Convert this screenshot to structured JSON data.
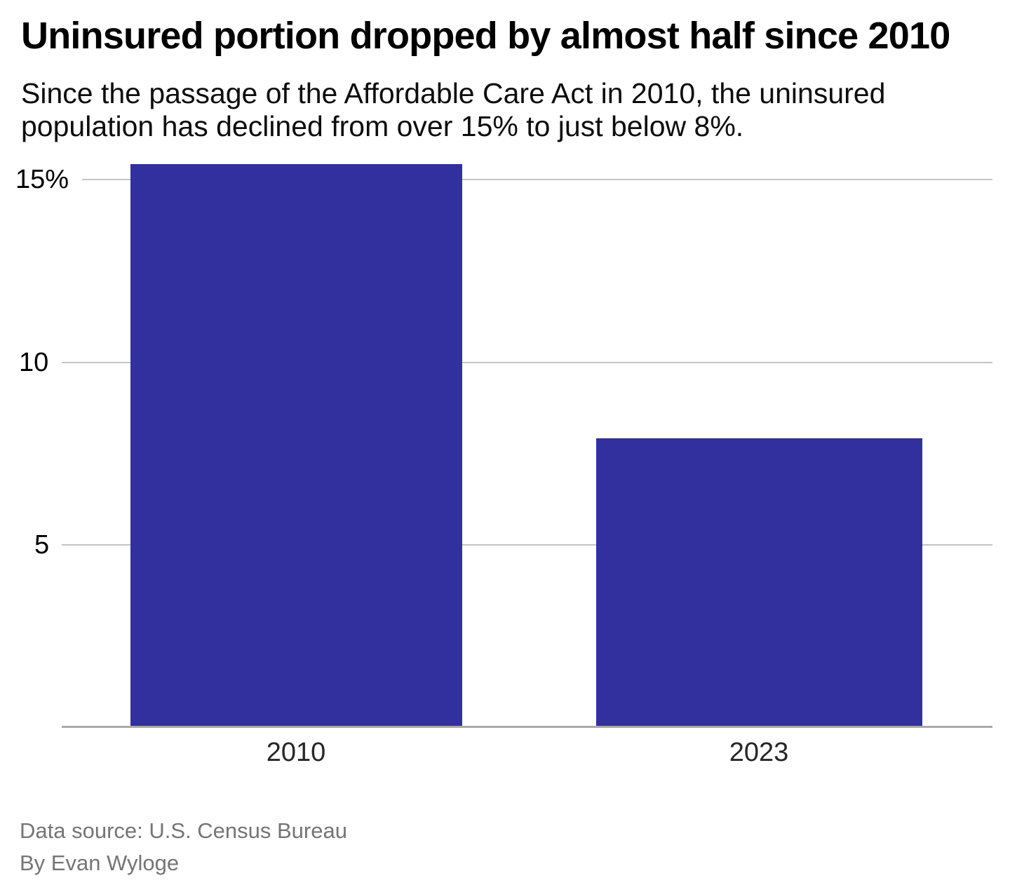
{
  "header": {
    "title": "Uninsured portion dropped by almost half since 2010",
    "subtitle": "Since the passage of the Affordable Care Act in 2010, the uninsured population has declined from over 15% to just below 8%."
  },
  "chart_data": {
    "type": "bar",
    "categories": [
      "2010",
      "2023"
    ],
    "values": [
      15.4,
      7.9
    ],
    "title": "Uninsured portion dropped by almost half since 2010",
    "subtitle": "Since the passage of the Affordable Care Act in 2010, the uninsured population has declined from over 15% to just below 8%.",
    "xlabel": "",
    "ylabel": "",
    "ylim": [
      0,
      15.4
    ],
    "yticks": [
      {
        "value": 15,
        "label": "15%"
      },
      {
        "value": 10,
        "label": "10"
      },
      {
        "value": 5,
        "label": "5"
      }
    ],
    "grid": true,
    "legend": false,
    "bar_color": "#32309e"
  },
  "colors": {
    "bar": "#32309e",
    "gridline": "#c4c4c4",
    "axis_line": "#aaaaaa",
    "text": "#000000",
    "muted": "#757575"
  },
  "footer": {
    "source": "Data source: U.S. Census Bureau",
    "byline": "By Evan Wyloge"
  }
}
